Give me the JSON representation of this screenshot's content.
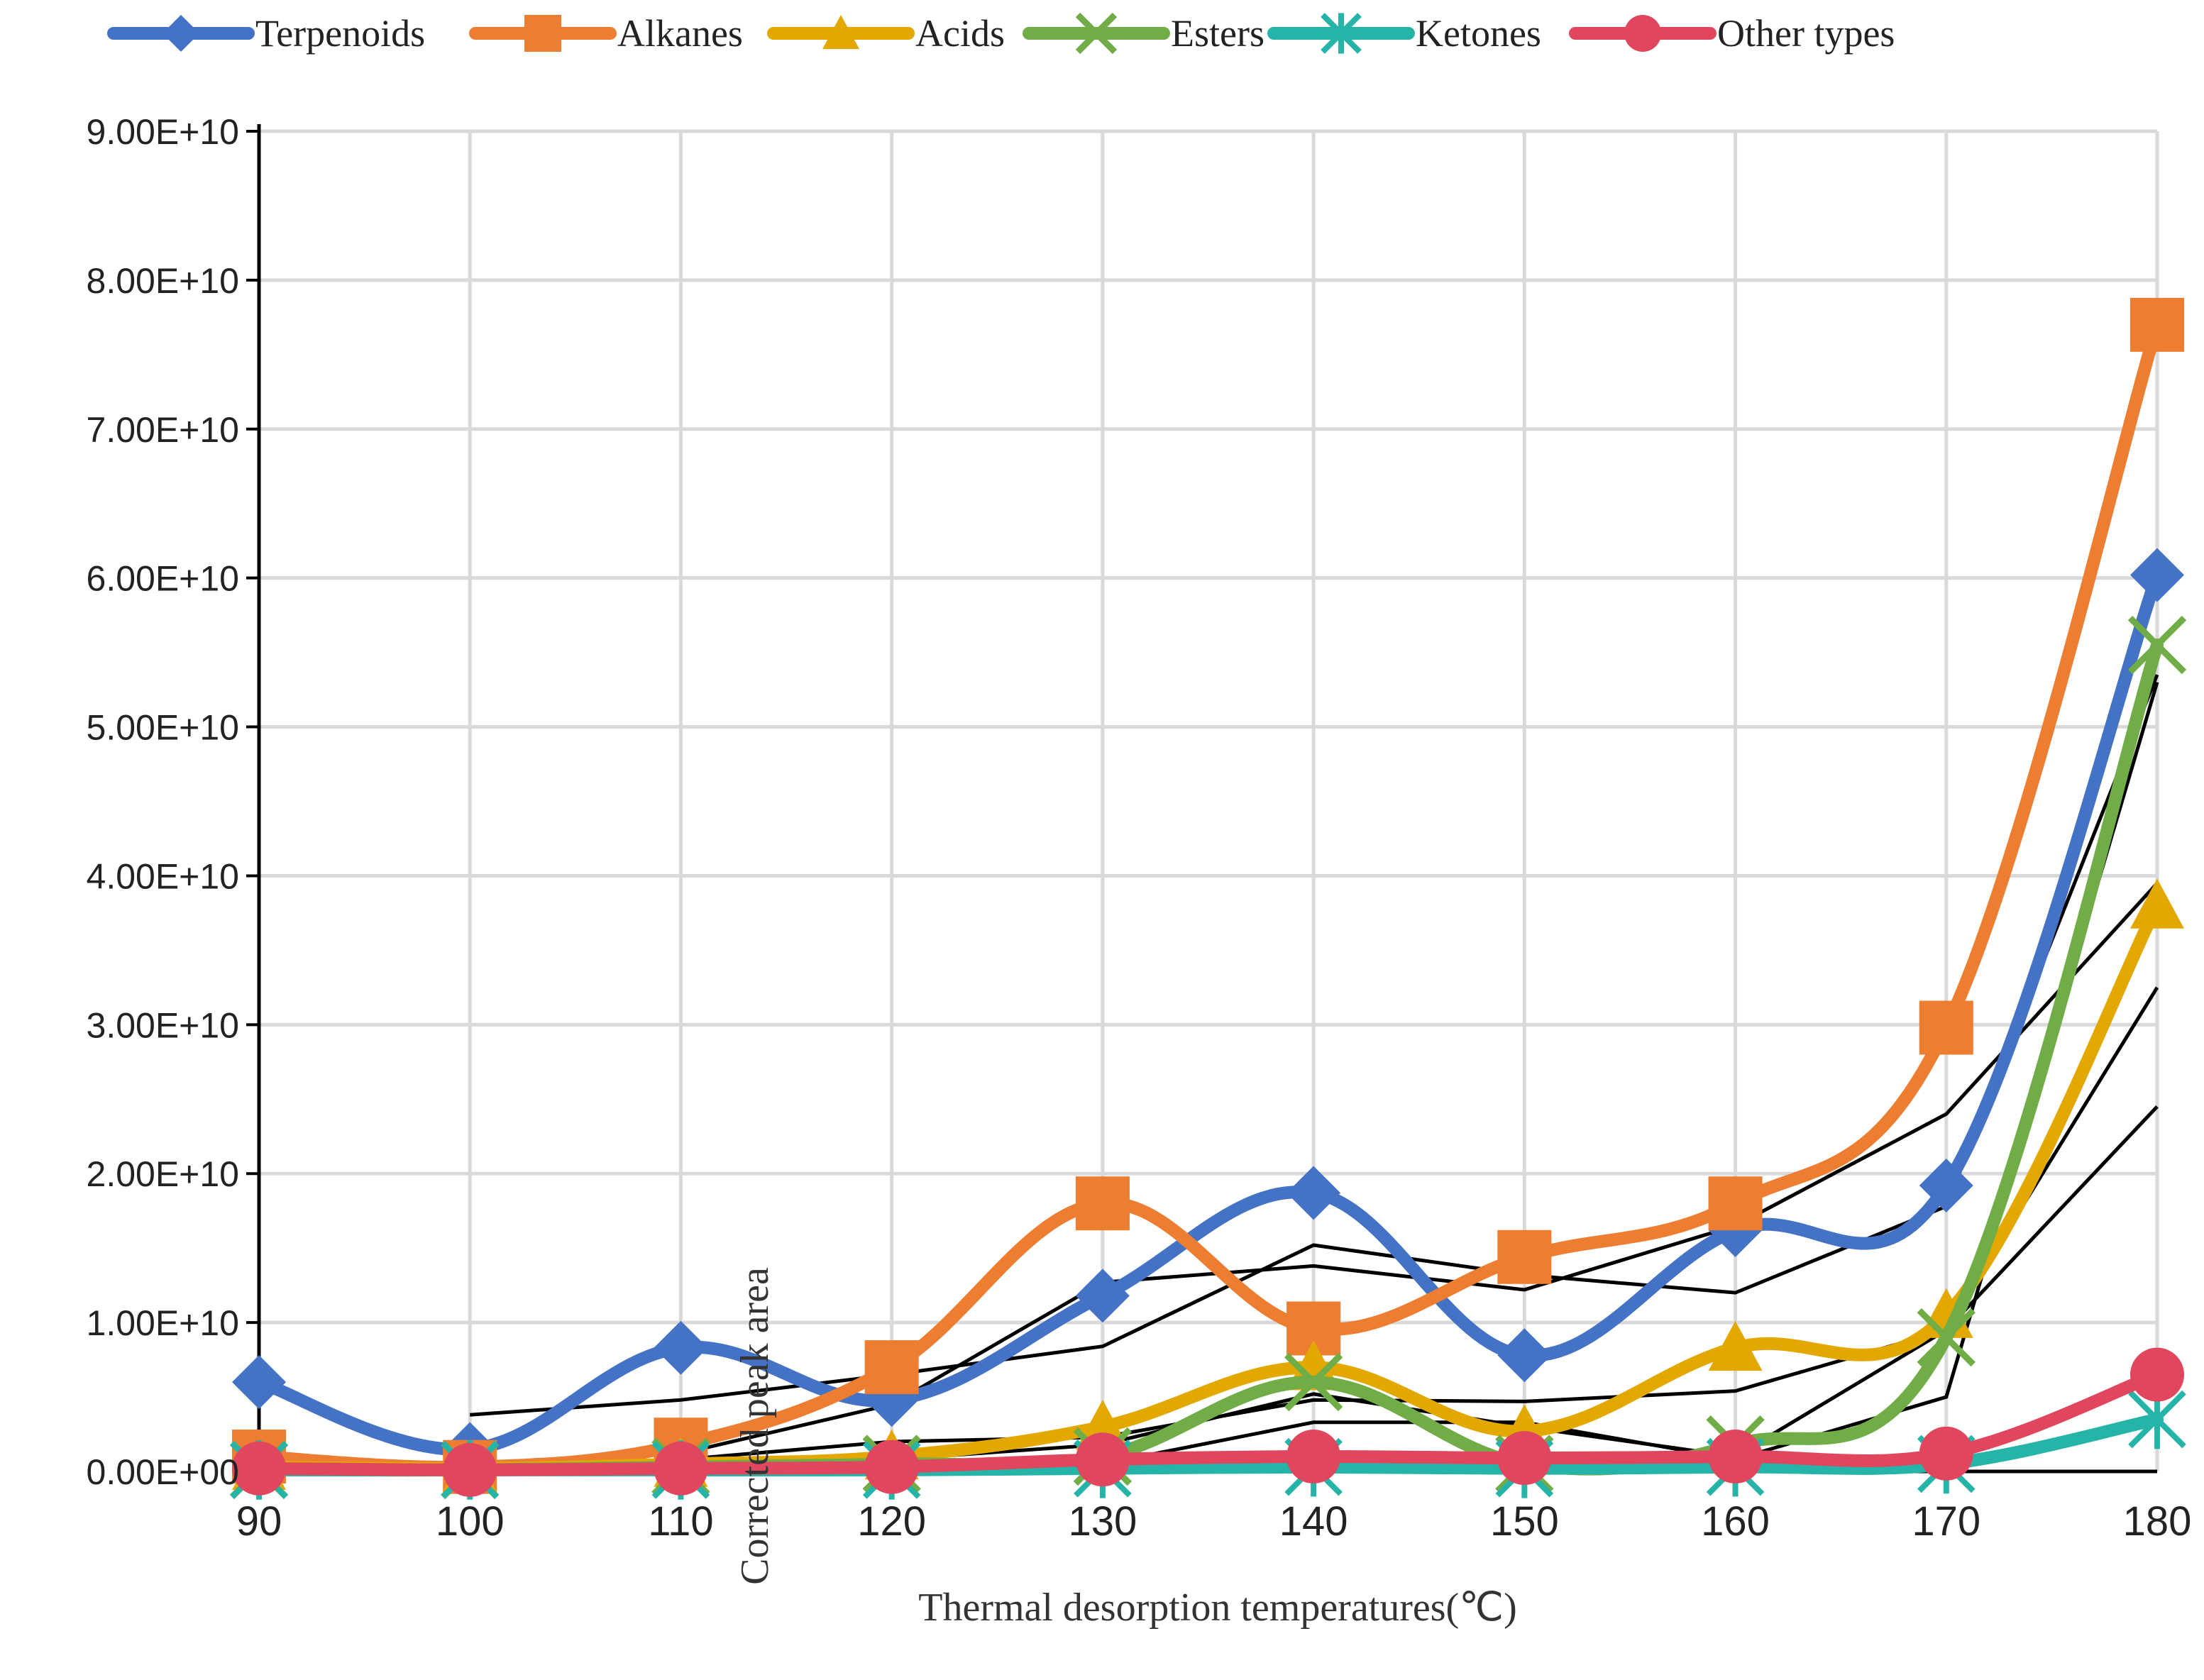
{
  "chart_data": {
    "type": "line",
    "title": "",
    "xlabel": "Thermal desorption temperatures(℃)",
    "ylabel": "Corrected peak area",
    "x": [
      90,
      100,
      110,
      120,
      130,
      140,
      150,
      160,
      170,
      180
    ],
    "xlim": [
      90,
      180
    ],
    "ylim": [
      0,
      90000000000
    ],
    "y_ticks": [
      "0.00E+00",
      "1.00E+10",
      "2.00E+10",
      "3.00E+10",
      "4.00E+10",
      "5.00E+10",
      "6.00E+10",
      "7.00E+10",
      "8.00E+10",
      "9.00E+10"
    ],
    "x_ticks": [
      "90",
      "100",
      "110",
      "120",
      "130",
      "140",
      "150",
      "160",
      "170",
      "180"
    ],
    "grid": true,
    "legend_position": "top",
    "series": [
      {
        "name": "Terpenoids",
        "color": "#4472C4",
        "marker": "diamond",
        "values": [
          6000000000.0,
          1500000000.0,
          8300000000.0,
          4800000000.0,
          11800000000.0,
          18700000000.0,
          7800000000.0,
          16200000000.0,
          19200000000.0,
          60200000000.0
        ]
      },
      {
        "name": "Alkanes",
        "color": "#ED7D31",
        "marker": "square",
        "values": [
          1000000000.0,
          300000000.0,
          1800000000.0,
          7000000000.0,
          18000000000.0,
          9600000000.0,
          14400000000.0,
          18000000000.0,
          29800000000.0,
          77000000000.0
        ]
      },
      {
        "name": "Acids",
        "color": "#E2A800",
        "marker": "triangle",
        "values": [
          300000000.0,
          200000000.0,
          500000000.0,
          1000000000.0,
          3000000000.0,
          7000000000.0,
          2700000000.0,
          8300000000.0,
          10500000000.0,
          38000000000.0
        ]
      },
      {
        "name": "Esters",
        "color": "#70AD47",
        "marker": "x",
        "values": [
          100000000.0,
          100000000.0,
          300000000.0,
          500000000.0,
          1000000000.0,
          6000000000.0,
          500000000.0,
          1800000000.0,
          9000000000.0,
          55500000000.0
        ]
      },
      {
        "name": "Ketones",
        "color": "#26B3A8",
        "marker": "star",
        "values": [
          100000000.0,
          100000000.0,
          100000000.0,
          100000000.0,
          200000000.0,
          300000000.0,
          200000000.0,
          300000000.0,
          500000000.0,
          3500000000.0
        ]
      },
      {
        "name": "Other types",
        "color": "#E0475E",
        "marker": "circle",
        "values": [
          200000000.0,
          100000000.0,
          200000000.0,
          300000000.0,
          800000000.0,
          1000000000.0,
          900000000.0,
          1000000000.0,
          1200000000.0,
          6500000000.0
        ]
      }
    ],
    "trendlines": [
      {
        "color": "#000000",
        "values": [
          3800000000.0,
          4800000000.0,
          6500000000.0,
          8400000000.0,
          15200000000.0,
          13200000000.0,
          12000000000.0,
          17800000000.0,
          53500000000.0
        ]
      },
      {
        "color": "#000000",
        "values": [
          500000000.0,
          1200000000.0,
          4500000000.0,
          12700000000.0,
          13800000000.0,
          12200000000.0,
          16500000000.0,
          24000000000.0,
          39500000000.0
        ]
      },
      {
        "color": "#000000",
        "values": [
          300000000.0,
          800000000.0,
          2000000000.0,
          2300000000.0,
          4800000000.0,
          4700000000.0,
          5400000000.0,
          9500000000.0,
          32500000000.0
        ]
      },
      {
        "color": "#000000",
        "values": [
          200000000.0,
          400000000.0,
          800000000.0,
          1800000000.0,
          5200000000.0,
          3000000000.0,
          1000000000.0,
          9500000000.0,
          24500000000.0
        ]
      },
      {
        "color": "#000000",
        "values": [
          100000000.0,
          200000000.0,
          300000000.0,
          500000000.0,
          3300000000.0,
          3300000000.0,
          800000000.0,
          5000000000.0,
          53000000000.0
        ]
      }
    ]
  }
}
